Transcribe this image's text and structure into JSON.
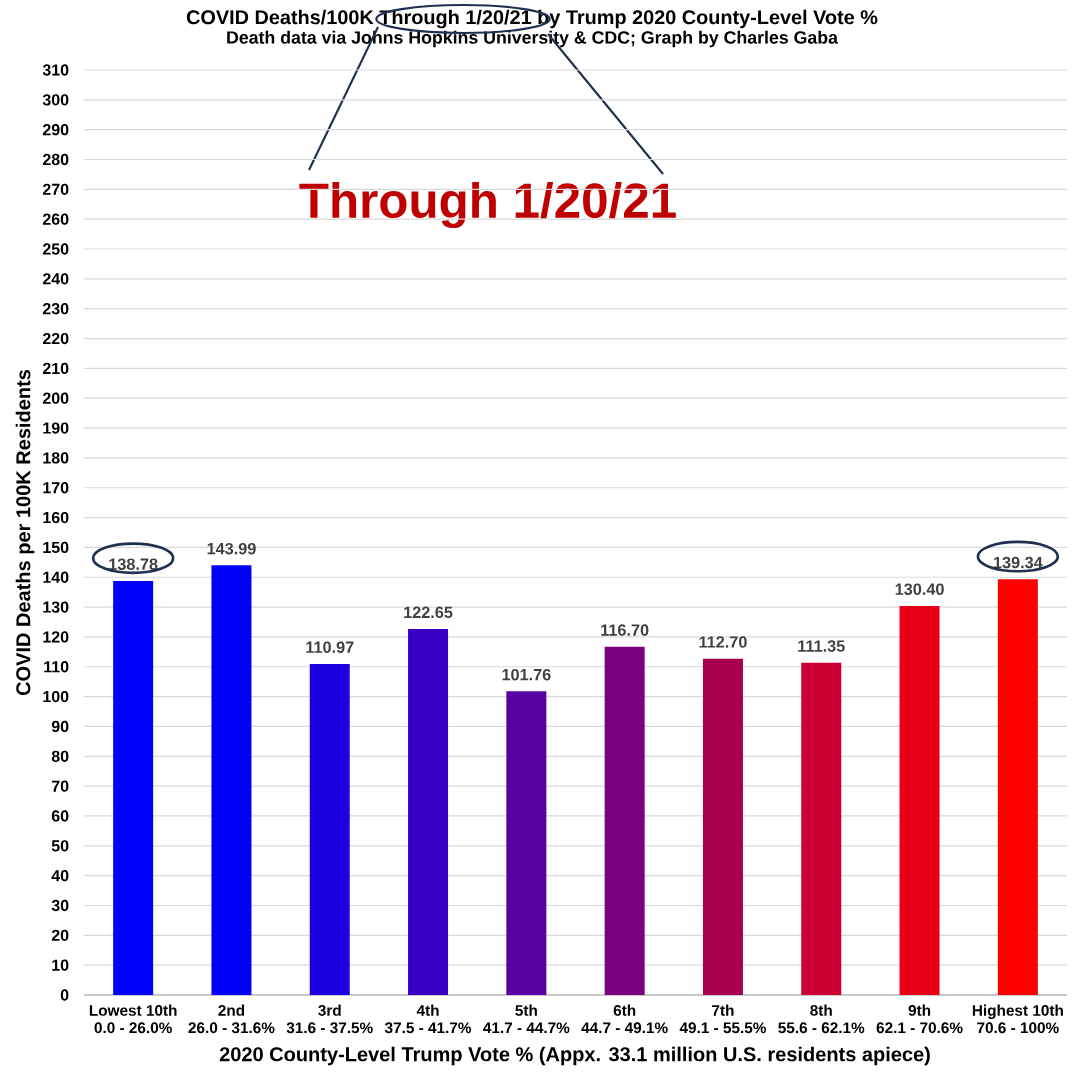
{
  "chart_data": {
    "type": "bar",
    "title": "COVID Deaths/100K Through 1/20/21 by Trump 2020 County-Level Vote %",
    "subtitle": "Death data via Johns Hopkins University & CDC; Graph by Charles Gaba",
    "xlabel": "2020 County-Level Trump Vote % (Appx. 33.1 million U.S. residents apiece)",
    "ylabel": "COVID Deaths per 100K Residents",
    "categories": [
      "Lowest 10th\n0.0 - 26.0%",
      "2nd\n26.0 - 31.6%",
      "3rd\n31.6 - 37.5%",
      "4th\n37.5 - 41.7%",
      "5th\n41.7 - 44.7%",
      "6th\n44.7 - 49.1%",
      "7th\n49.1 - 55.5%",
      "8th\n55.6 - 62.1%",
      "9th\n62.1 - 70.6%",
      "Highest 10th\n70.6 - 100%"
    ],
    "values": [
      138.78,
      143.99,
      110.97,
      122.65,
      101.76,
      116.7,
      112.7,
      111.35,
      130.4,
      139.34
    ],
    "colors": [
      "#0000ff",
      "#0000f8",
      "#1c00e0",
      "#3800c4",
      "#5800a2",
      "#7a0080",
      "#a8004c",
      "#cc0033",
      "#e80018",
      "#ff0000"
    ],
    "value_labels": [
      "138.78",
      "143.99",
      "110.97",
      "122.65",
      "101.76",
      "116.70",
      "112.70",
      "111.35",
      "130.40",
      "139.34"
    ],
    "ylim": [
      0,
      310
    ],
    "yticks": [
      0,
      10,
      20,
      30,
      40,
      50,
      60,
      70,
      80,
      90,
      100,
      110,
      120,
      130,
      140,
      150,
      160,
      170,
      180,
      190,
      200,
      210,
      220,
      230,
      240,
      250,
      260,
      270,
      280,
      290,
      300,
      310
    ],
    "grid": "y",
    "annotations": [
      "Through 1/20/21"
    ]
  }
}
